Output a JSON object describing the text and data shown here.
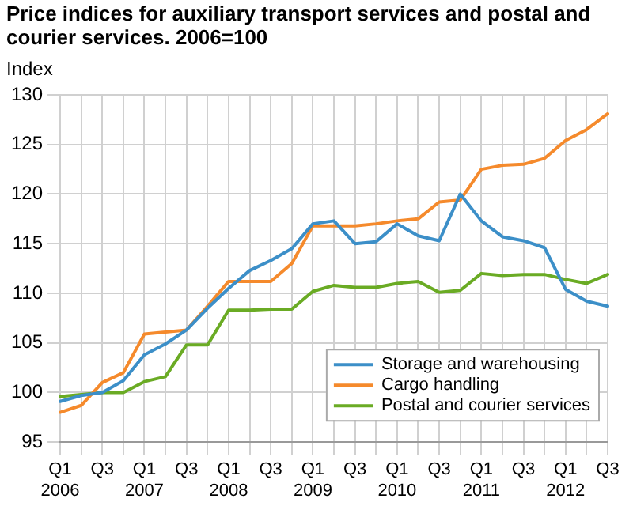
{
  "chart_data": {
    "type": "line",
    "title": "Price indices for auxiliary transport services and postal and courier services. 2006=100",
    "ylabel": "Index",
    "categories": [
      "Q1\n2006",
      null,
      "Q3",
      null,
      "Q1\n2007",
      null,
      "Q3",
      null,
      "Q1\n2008",
      null,
      "Q3",
      null,
      "Q1\n2009",
      null,
      "Q3",
      null,
      "Q1\n2010",
      null,
      "Q3",
      null,
      "Q1\n2011",
      null,
      "Q3",
      null,
      "Q1\n2012",
      null,
      "Q3"
    ],
    "series": [
      {
        "name": "Storage and warehousing",
        "color": "#3c8fc8",
        "values": [
          99.1,
          99.7,
          100.0,
          101.2,
          103.8,
          104.9,
          106.3,
          108.5,
          110.5,
          112.3,
          113.3,
          114.5,
          117.0,
          117.3,
          115.0,
          115.2,
          117.0,
          115.8,
          115.3,
          120.0,
          117.3,
          115.7,
          115.3,
          114.6,
          110.4,
          109.2,
          108.7
        ]
      },
      {
        "name": "Cargo handling",
        "color": "#f58a2c",
        "values": [
          98.0,
          98.7,
          101.0,
          102.0,
          105.9,
          106.1,
          106.3,
          108.7,
          111.2,
          111.2,
          111.2,
          113.0,
          116.8,
          116.8,
          116.8,
          117.0,
          117.3,
          117.5,
          119.2,
          119.4,
          122.5,
          122.9,
          123.0,
          123.6,
          125.4,
          126.5,
          128.1
        ]
      },
      {
        "name": "Postal and courier services",
        "color": "#6aab24",
        "values": [
          99.6,
          99.8,
          100.0,
          100.0,
          101.1,
          101.6,
          104.8,
          104.8,
          108.3,
          108.3,
          108.4,
          108.4,
          110.2,
          110.8,
          110.6,
          110.6,
          111.0,
          111.2,
          110.1,
          110.3,
          112.0,
          111.8,
          111.9,
          111.9,
          111.4,
          111.0,
          111.9
        ]
      }
    ],
    "ylim": [
      95,
      130
    ],
    "yticks": [
      95,
      100,
      105,
      110,
      115,
      120,
      125,
      130
    ],
    "grid": true,
    "legend": "bottom right",
    "marker": "none",
    "line_style": "solid"
  }
}
